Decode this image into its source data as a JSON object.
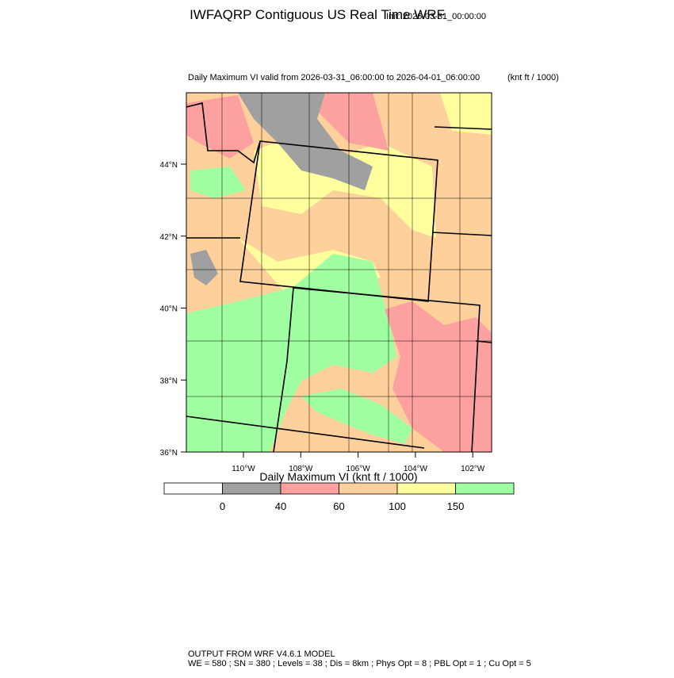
{
  "header": {
    "title": "IWFAQRP Contiguous US Real Time WRF",
    "init": "Init: 2026-03-31_00:00:00"
  },
  "map": {
    "subtitle": "Daily Maximum VI valid from 2026-03-31_06:00:00 to 2026-04-01_06:00:00",
    "units": "(knt ft / 1000)",
    "lat_labels": [
      "44°N",
      "42°N",
      "40°N",
      "38°N",
      "36°N"
    ],
    "lon_labels": [
      "110°W",
      "108°W",
      "106°W",
      "104°W",
      "102°W"
    ]
  },
  "colorbar": {
    "title": "Daily Maximum VI  (knt ft / 1000)",
    "colors": [
      "#ffffff",
      "#a0a0a0",
      "#fca0a0",
      "#fdd09c",
      "#ffff9e",
      "#a0ffa0"
    ],
    "labels": [
      "0",
      "40",
      "60",
      "100",
      "150"
    ]
  },
  "footer": {
    "lines": [
      "OUTPUT FROM WRF V4.6.1 MODEL",
      "WE = 580 ; SN = 380 ; Levels = 38 ; Dis = 8km ; Phys Opt = 8 ; PBL Opt = 1 ; Cu Opt = 5"
    ]
  }
}
